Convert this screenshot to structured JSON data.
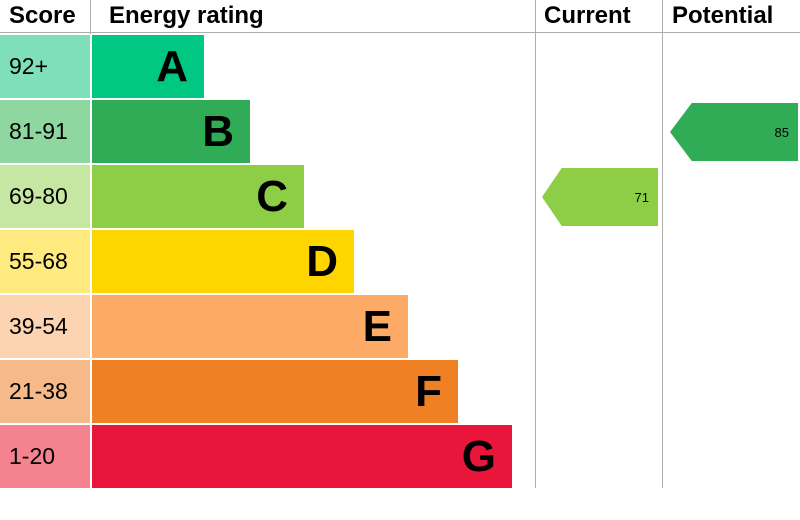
{
  "headers": {
    "score": "Score",
    "rating": "Energy rating",
    "current": "Current",
    "potential": "Potential"
  },
  "chart_data": {
    "type": "bar",
    "title": "Energy rating",
    "categories": [
      "92+",
      "81-91",
      "69-80",
      "55-68",
      "39-54",
      "21-38",
      "1-20"
    ],
    "bands": [
      {
        "grade": "A",
        "score": "92+",
        "bar_color": "#00c781",
        "score_color": "#7fdfba"
      },
      {
        "grade": "B",
        "score": "81-91",
        "bar_color": "#2fac55",
        "score_color": "#8fd7a0"
      },
      {
        "grade": "C",
        "score": "69-80",
        "bar_color": "#8dce46",
        "score_color": "#c6e7a2"
      },
      {
        "grade": "D",
        "score": "55-68",
        "bar_color": "#ffd500",
        "score_color": "#ffea80"
      },
      {
        "grade": "E",
        "score": "39-54",
        "bar_color": "#fcaa65",
        "score_color": "#fdd4b1"
      },
      {
        "grade": "F",
        "score": "21-38",
        "bar_color": "#ef8023",
        "score_color": "#f5b98a"
      },
      {
        "grade": "G",
        "score": "1-20",
        "bar_color": "#e9153b",
        "score_color": "#f4838f"
      }
    ],
    "current": {
      "value": 71,
      "grade": "C",
      "color": "#8dce46"
    },
    "potential": {
      "value": 85,
      "grade": "B",
      "color": "#2fac55"
    }
  }
}
